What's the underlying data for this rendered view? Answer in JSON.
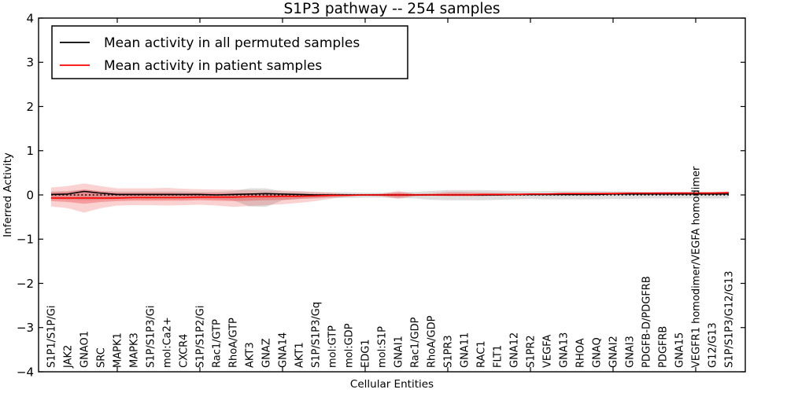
{
  "chart_data": {
    "type": "line",
    "title": "S1P3 pathway -- 254 samples",
    "xlabel": "Cellular Entities",
    "ylabel": "Inferred Activity",
    "ylim": [
      -4,
      4
    ],
    "yticks": [
      4,
      3,
      2,
      1,
      0,
      -1,
      -2,
      -3,
      -4
    ],
    "ytick_labels": [
      "4",
      "3",
      "2",
      "1",
      "0",
      "−1",
      "−2",
      "−3",
      "−4"
    ],
    "grid": false,
    "legend_position": "upper left",
    "zero_reference_line": {
      "y": 0,
      "style": "dotted",
      "color": "#000000"
    },
    "xtick_marks_at_category_index": [
      4,
      9,
      14,
      19,
      24,
      29,
      34,
      39
    ],
    "categories": [
      "S1P1/S1P/Gi",
      "JAK2",
      "GNAO1",
      "SRC",
      "MAPK1",
      "MAPK3",
      "S1P/S1P3/Gi",
      "mol:Ca2+",
      "CXCR4",
      "S1P/S1P2/Gi",
      "Rac1/GTP",
      "RhoA/GTP",
      "AKT3",
      "GNAZ",
      "GNA14",
      "AKT1",
      "S1P/S1P3/Gq",
      "mol:GTP",
      "mol:GDP",
      "EDG1",
      "mol:S1P",
      "GNAI1",
      "Rac1/GDP",
      "RhoA/GDP",
      "S1PR3",
      "GNA11",
      "RAC1",
      "FLT1",
      "GNA12",
      "S1PR2",
      "VEGFA",
      "GNA13",
      "RHOA",
      "GNAQ",
      "GNAI2",
      "GNAI3",
      "PDGFB-D/PDGFRB",
      "PDGFRB",
      "GNA15",
      "VEGFR1 homodimer/VEGFA homodimer",
      "G12/G13",
      "S1P/S1P3/G12/G13"
    ],
    "series": [
      {
        "name": "Mean activity in all permuted samples",
        "color": "#000000",
        "style": "solid",
        "values": [
          0.01,
          0.02,
          0.08,
          0.04,
          0.01,
          0.01,
          0.01,
          0.01,
          0.01,
          0.01,
          0.0,
          0.01,
          0.02,
          0.03,
          0.02,
          0.01,
          0.0,
          0.0,
          0.0,
          0.0,
          0.0,
          0.0,
          0.0,
          0.0,
          0.0,
          0.0,
          0.0,
          0.0,
          0.01,
          0.01,
          0.01,
          0.01,
          0.01,
          0.01,
          0.02,
          0.02,
          0.02,
          0.02,
          0.02,
          0.02,
          0.02,
          0.02
        ]
      },
      {
        "name": "Mean activity in patient samples",
        "color": "#ff0000",
        "style": "solid",
        "values": [
          -0.07,
          -0.07,
          -0.07,
          -0.07,
          -0.07,
          -0.06,
          -0.06,
          -0.06,
          -0.06,
          -0.05,
          -0.05,
          -0.05,
          -0.04,
          -0.04,
          -0.03,
          -0.03,
          -0.02,
          -0.01,
          -0.01,
          0.0,
          0.0,
          0.0,
          0.0,
          0.0,
          0.0,
          0.0,
          0.01,
          0.01,
          0.01,
          0.02,
          0.02,
          0.03,
          0.03,
          0.03,
          0.03,
          0.04,
          0.04,
          0.04,
          0.04,
          0.04,
          0.04,
          0.05
        ]
      }
    ],
    "bands": [
      {
        "name": "permuted samples spread",
        "color": "#999999",
        "opacity": 0.32,
        "lower": [
          -0.1,
          -0.11,
          -0.12,
          -0.11,
          -0.1,
          -0.1,
          -0.1,
          -0.1,
          -0.1,
          -0.09,
          -0.1,
          -0.12,
          -0.26,
          -0.27,
          -0.12,
          -0.09,
          -0.08,
          -0.07,
          -0.07,
          -0.06,
          -0.06,
          -0.07,
          -0.08,
          -0.11,
          -0.12,
          -0.12,
          -0.12,
          -0.11,
          -0.1,
          -0.09,
          -0.1,
          -0.1,
          -0.1,
          -0.1,
          -0.09,
          -0.09,
          -0.08,
          -0.08,
          -0.08,
          -0.08,
          -0.08,
          -0.08
        ],
        "upper": [
          0.08,
          0.09,
          0.12,
          0.09,
          0.08,
          0.08,
          0.08,
          0.08,
          0.08,
          0.07,
          0.07,
          0.09,
          0.15,
          0.15,
          0.08,
          0.07,
          0.06,
          0.06,
          0.06,
          0.05,
          0.05,
          0.06,
          0.07,
          0.09,
          0.11,
          0.11,
          0.11,
          0.1,
          0.09,
          0.08,
          0.09,
          0.09,
          0.09,
          0.09,
          0.08,
          0.08,
          0.07,
          0.07,
          0.07,
          0.07,
          0.07,
          0.07
        ]
      },
      {
        "name": "patient samples spread outer",
        "color": "#ee3333",
        "opacity": 0.22,
        "lower": [
          -0.26,
          -0.3,
          -0.4,
          -0.3,
          -0.24,
          -0.23,
          -0.23,
          -0.24,
          -0.23,
          -0.22,
          -0.24,
          -0.27,
          -0.25,
          -0.23,
          -0.21,
          -0.18,
          -0.14,
          -0.08,
          -0.03,
          -0.02,
          -0.03,
          -0.09,
          -0.03,
          -0.02,
          -0.03,
          -0.03,
          -0.03,
          -0.02,
          -0.02,
          -0.01,
          0.0,
          0.01,
          0.01,
          0.01,
          0.01,
          0.02,
          0.02,
          0.02,
          0.02,
          0.02,
          0.02,
          0.02
        ],
        "upper": [
          0.17,
          0.2,
          0.26,
          0.2,
          0.15,
          0.15,
          0.15,
          0.16,
          0.14,
          0.13,
          0.12,
          0.12,
          0.11,
          0.1,
          0.1,
          0.09,
          0.07,
          0.05,
          0.02,
          0.02,
          0.03,
          0.09,
          0.03,
          0.04,
          0.07,
          0.07,
          0.06,
          0.05,
          0.04,
          0.04,
          0.04,
          0.05,
          0.05,
          0.05,
          0.06,
          0.06,
          0.06,
          0.07,
          0.07,
          0.07,
          0.07,
          0.08
        ]
      },
      {
        "name": "patient samples spread inner",
        "color": "#ee2222",
        "opacity": 0.3,
        "lower": [
          -0.14,
          -0.16,
          -0.2,
          -0.16,
          -0.14,
          -0.13,
          -0.13,
          -0.13,
          -0.13,
          -0.12,
          -0.13,
          -0.14,
          -0.13,
          -0.12,
          -0.11,
          -0.09,
          -0.07,
          -0.04,
          -0.02,
          -0.01,
          -0.02,
          -0.05,
          -0.02,
          -0.01,
          -0.02,
          -0.02,
          -0.02,
          -0.01,
          -0.01,
          0.0,
          0.01,
          0.01,
          0.01,
          0.02,
          0.02,
          0.02,
          0.02,
          0.03,
          0.03,
          0.03,
          0.03,
          0.03
        ],
        "upper": [
          0.06,
          0.07,
          0.12,
          0.08,
          0.05,
          0.05,
          0.05,
          0.05,
          0.04,
          0.04,
          0.04,
          0.04,
          0.04,
          0.03,
          0.03,
          0.03,
          0.02,
          0.02,
          0.01,
          0.01,
          0.02,
          0.05,
          0.02,
          0.02,
          0.04,
          0.04,
          0.03,
          0.03,
          0.03,
          0.03,
          0.03,
          0.04,
          0.04,
          0.05,
          0.05,
          0.05,
          0.05,
          0.06,
          0.06,
          0.06,
          0.06,
          0.07
        ]
      }
    ]
  }
}
